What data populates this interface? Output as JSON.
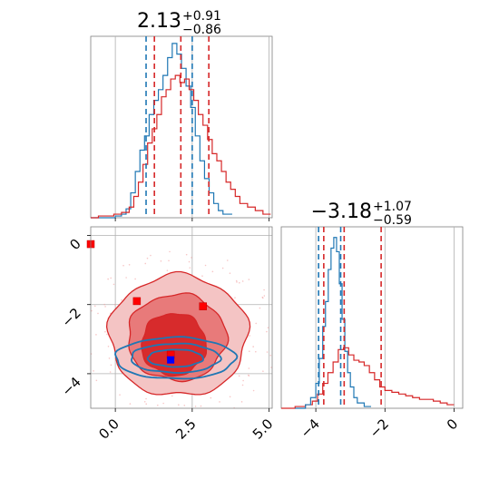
{
  "chart_data": {
    "type": "corner",
    "colors": {
      "red": "#d62728",
      "blue": "#1f77b4",
      "red_fill_light": "#f4c4c4",
      "red_fill_mid": "#e87a7a",
      "red_fill_dark": "#d62728",
      "grid": "#b0b0b0",
      "axis": "#808080"
    },
    "panels": {
      "param1_hist": {
        "title_value": "2.13",
        "title_plus": "+0.91",
        "title_minus": "−0.86",
        "xlim": [
          -0.8,
          5.1
        ],
        "grid_x": [
          0,
          2.5,
          5
        ],
        "red_quantiles": [
          1.27,
          2.13,
          3.04
        ],
        "blue_quantiles": [
          1.0,
          2.5
        ],
        "red_series": {
          "x": [
            -0.8,
            -0.55,
            -0.3,
            -0.05,
            0.2,
            0.45,
            0.6,
            0.75,
            0.9,
            1.05,
            1.2,
            1.35,
            1.5,
            1.65,
            1.8,
            1.95,
            2.1,
            2.25,
            2.4,
            2.55,
            2.7,
            2.85,
            3.0,
            3.15,
            3.3,
            3.45,
            3.6,
            3.75,
            3.9,
            4.05,
            4.3,
            4.55,
            4.8,
            5.05
          ],
          "y": [
            0.0,
            0.01,
            0.01,
            0.02,
            0.03,
            0.06,
            0.12,
            0.2,
            0.3,
            0.42,
            0.5,
            0.58,
            0.68,
            0.72,
            0.78,
            0.8,
            0.76,
            0.78,
            0.72,
            0.66,
            0.58,
            0.52,
            0.44,
            0.36,
            0.32,
            0.26,
            0.2,
            0.16,
            0.12,
            0.08,
            0.06,
            0.04,
            0.02,
            0.01
          ]
        },
        "blue_series": {
          "x": [
            -0.8,
            -0.3,
            0.0,
            0.2,
            0.35,
            0.5,
            0.65,
            0.8,
            0.95,
            1.1,
            1.25,
            1.4,
            1.55,
            1.7,
            1.85,
            2.0,
            2.15,
            2.3,
            2.45,
            2.6,
            2.75,
            2.9,
            3.05,
            3.2,
            3.35,
            3.5,
            3.8
          ],
          "y": [
            0.0,
            0.0,
            0.01,
            0.02,
            0.05,
            0.14,
            0.26,
            0.38,
            0.46,
            0.58,
            0.66,
            0.72,
            0.8,
            0.9,
            0.98,
            0.92,
            0.84,
            0.74,
            0.62,
            0.46,
            0.32,
            0.22,
            0.14,
            0.08,
            0.04,
            0.02,
            0.0
          ]
        }
      },
      "param2_hist": {
        "title_value": "−3.18",
        "title_plus": "+1.07",
        "title_minus": "−0.59",
        "xlim": [
          -5.0,
          0.25
        ],
        "grid_x": [
          -4,
          -2,
          0
        ],
        "red_quantiles": [
          -3.77,
          -3.18,
          -2.11
        ],
        "blue_quantiles": [
          -3.92,
          -3.28
        ],
        "red_series": {
          "x": [
            -5.0,
            -4.6,
            -4.3,
            -4.1,
            -3.95,
            -3.8,
            -3.65,
            -3.5,
            -3.35,
            -3.2,
            -3.05,
            -2.9,
            -2.75,
            -2.6,
            -2.45,
            -2.3,
            -2.15,
            -2.0,
            -1.8,
            -1.6,
            -1.4,
            -1.2,
            -1.0,
            -0.8,
            -0.6,
            -0.4,
            -0.2,
            0.0
          ],
          "y": [
            0.0,
            0.01,
            0.02,
            0.04,
            0.08,
            0.14,
            0.2,
            0.26,
            0.33,
            0.34,
            0.3,
            0.27,
            0.26,
            0.24,
            0.2,
            0.16,
            0.12,
            0.1,
            0.09,
            0.08,
            0.07,
            0.06,
            0.05,
            0.05,
            0.04,
            0.03,
            0.02,
            0.01
          ]
        },
        "blue_series": {
          "x": [
            -4.6,
            -4.3,
            -4.15,
            -4.0,
            -3.9,
            -3.8,
            -3.72,
            -3.64,
            -3.56,
            -3.48,
            -3.4,
            -3.32,
            -3.24,
            -3.16,
            -3.08,
            -3.0,
            -2.9,
            -2.8,
            -2.6,
            -2.4
          ],
          "y": [
            0.0,
            0.02,
            0.06,
            0.14,
            0.28,
            0.46,
            0.6,
            0.78,
            0.9,
            0.96,
            0.88,
            0.7,
            0.5,
            0.32,
            0.2,
            0.12,
            0.06,
            0.03,
            0.01,
            0.0
          ]
        }
      },
      "joint": {
        "xlim": [
          -0.8,
          5.1
        ],
        "ylim": [
          -5.0,
          0.25
        ],
        "grid_x": [
          0,
          2.5,
          5
        ],
        "grid_y": [
          -4,
          -2,
          0
        ],
        "red_markers": [
          [
            -0.8,
            -0.25
          ],
          [
            0.7,
            -1.9
          ],
          [
            2.85,
            -2.05
          ],
          [
            1.8,
            -3.45
          ]
        ],
        "blue_marker": [
          1.8,
          -3.6
        ],
        "red_contours": [
          {
            "level": "outer",
            "cx": 2.05,
            "cy": -2.9,
            "rx": 2.25,
            "ry": 1.75
          },
          {
            "level": "mid",
            "cx": 2.0,
            "cy": -2.95,
            "rx": 1.6,
            "ry": 1.25
          },
          {
            "level": "inner",
            "cx": 1.9,
            "cy": -3.15,
            "rx": 1.05,
            "ry": 0.9
          }
        ],
        "blue_contours": [
          {
            "cx": 1.95,
            "cy": -3.55,
            "rx": 1.95,
            "ry": 0.6
          },
          {
            "cx": 1.95,
            "cy": -3.55,
            "rx": 1.45,
            "ry": 0.42
          },
          {
            "cx": 1.95,
            "cy": -3.55,
            "rx": 0.9,
            "ry": 0.25
          }
        ]
      }
    },
    "x_ticks_param1": [
      "0.0",
      "2.5",
      "5.0"
    ],
    "y_ticks_param2": [
      "0",
      "−2",
      "−4"
    ],
    "x_ticks_param2": [
      "−4",
      "−2",
      "0"
    ]
  }
}
